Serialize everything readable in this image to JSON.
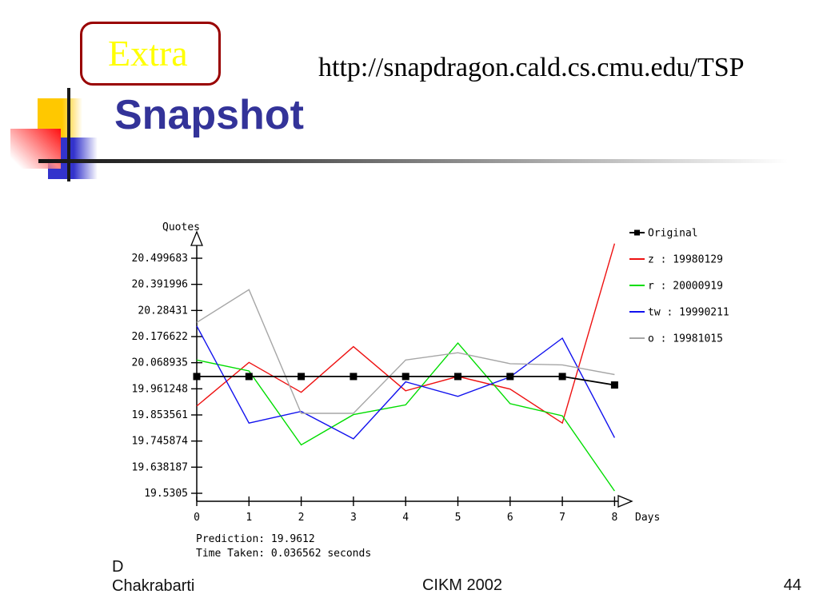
{
  "badge": {
    "label": "Extra"
  },
  "header": {
    "url": "http://snapdragon.cald.cs.cmu.edu/TSP",
    "title": "Snapshot"
  },
  "footer": {
    "author_line1": "D",
    "author_line2": "Chakrabarti",
    "conference": "CIKM 2002",
    "page_number": "44"
  },
  "colors": {
    "title_blue": "#333399",
    "badge_border_red": "#990000",
    "badge_text_yellow": "#ffff00",
    "series_original": "#000000",
    "series_z": "#ee1111",
    "series_r": "#00dd00",
    "series_tw": "#1111ee",
    "series_o": "#a6a6a6"
  },
  "chart_data": {
    "type": "line",
    "title": "",
    "xlabel": "Days",
    "ylabel": "Quotes",
    "grid": false,
    "legend_position": "top-right",
    "x": [
      0,
      1,
      2,
      3,
      4,
      5,
      6,
      7,
      8
    ],
    "x_tick_labels": [
      "0",
      "1",
      "2",
      "3",
      "4",
      "5",
      "6",
      "7",
      "8"
    ],
    "y_tick_labels": [
      "20.499683",
      "20.391996",
      "20.28431",
      "20.176622",
      "20.068935",
      "19.961248",
      "19.853561",
      "19.745874",
      "19.638187",
      "19.5305"
    ],
    "ylim": [
      19.5305,
      20.499683
    ],
    "series": [
      {
        "id": "original",
        "name": "Original",
        "color": "#000000",
        "marker": "square",
        "values": [
          20.012,
          20.012,
          20.012,
          20.012,
          20.012,
          20.012,
          20.012,
          20.012,
          19.977
        ]
      },
      {
        "id": "z",
        "name": "z : 19980129",
        "color": "#ee1111",
        "marker": "none",
        "values": [
          19.89,
          20.07,
          19.947,
          20.135,
          19.953,
          20.012,
          19.96,
          19.82,
          20.56
        ]
      },
      {
        "id": "r",
        "name": "r : 20000919",
        "color": "#00dd00",
        "marker": "none",
        "values": [
          20.08,
          20.035,
          19.73,
          19.855,
          19.895,
          20.15,
          19.9,
          19.85,
          19.54
        ]
      },
      {
        "id": "tw",
        "name": "tw : 19990211",
        "color": "#1111ee",
        "marker": "none",
        "values": [
          20.22,
          19.82,
          19.868,
          19.755,
          19.99,
          19.93,
          20.01,
          20.17,
          19.76
        ]
      },
      {
        "id": "o",
        "name": "o : 19981015",
        "color": "#a6a6a6",
        "marker": "none",
        "values": [
          20.235,
          20.37,
          19.86,
          19.86,
          20.08,
          20.11,
          20.065,
          20.06,
          20.02
        ]
      }
    ],
    "annotations": [
      "Prediction: 19.9612",
      "Time Taken: 0.036562 seconds"
    ]
  }
}
